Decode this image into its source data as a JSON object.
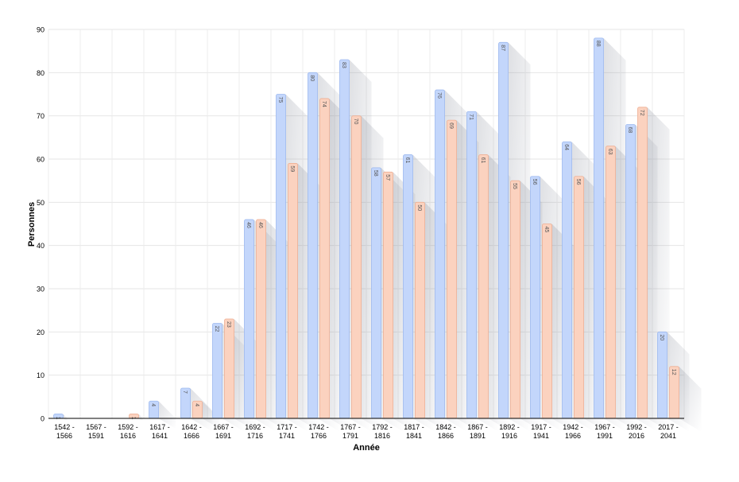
{
  "chart_data": {
    "type": "bar",
    "xlabel": "Année",
    "ylabel": "Personnes",
    "ylim": [
      0,
      90
    ],
    "yticks": [
      0,
      10,
      20,
      30,
      40,
      50,
      60,
      70,
      80,
      90
    ],
    "grid": true,
    "categories": [
      "1542 - 1566",
      "1567 - 1591",
      "1592 - 1616",
      "1617 - 1641",
      "1642 - 1666",
      "1667 - 1691",
      "1692 - 1716",
      "1717 - 1741",
      "1742 - 1766",
      "1767 - 1791",
      "1792 - 1816",
      "1817 - 1841",
      "1842 - 1866",
      "1867 - 1891",
      "1892 - 1916",
      "1917 - 1941",
      "1942 - 1966",
      "1967 - 1991",
      "1992 - 2016",
      "2017 - 2041"
    ],
    "series": [
      {
        "color": "#c3d6fb",
        "border": "#9db9ef",
        "values": [
          1,
          0,
          0,
          4,
          7,
          22,
          46,
          75,
          80,
          83,
          58,
          61,
          76,
          71,
          87,
          56,
          64,
          88,
          68,
          20
        ]
      },
      {
        "color": "#fbd2bf",
        "border": "#efaf93",
        "values": [
          0,
          0,
          1,
          0,
          4,
          23,
          46,
          59,
          74,
          70,
          57,
          50,
          69,
          61,
          55,
          45,
          56,
          63,
          72,
          12
        ]
      }
    ]
  }
}
